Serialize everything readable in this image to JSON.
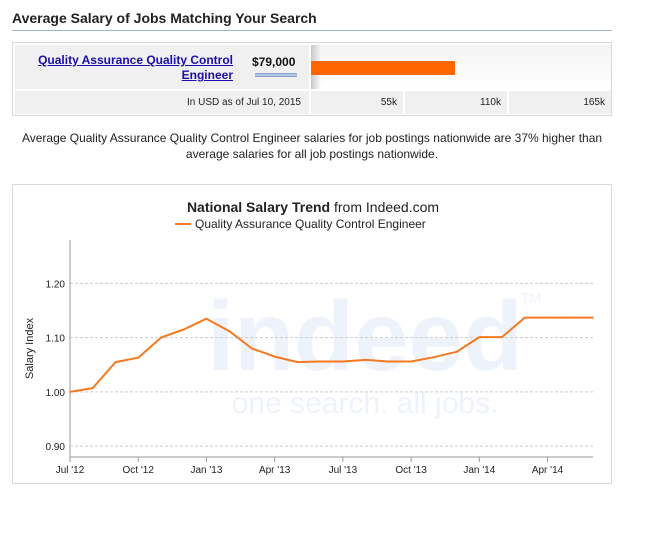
{
  "heading": "Average Salary of Jobs Matching Your Search",
  "salary_box": {
    "job_title": "Quality Assurance Quality Control Engineer",
    "salary": "$79,000",
    "bar_value": 79000,
    "axis_max": 165000,
    "info": "In USD as of Jul 10, 2015",
    "ticks": [
      "55k",
      "110k",
      "165k"
    ]
  },
  "summary": "Average Quality Assurance Quality Control Engineer salaries for job postings nationwide are 37% higher than average salaries for all job postings nationwide.",
  "chart": {
    "title_bold": "National Salary Trend",
    "title_rest": " from Indeed.com",
    "legend": "Quality Assurance Quality Control Engineer",
    "ylabel": "Salary Index",
    "watermark_logo": "indeed",
    "watermark_tm": "TM",
    "watermark_tagline": "one search. all jobs.",
    "line_color": "#f47920"
  },
  "chart_data": {
    "type": "line",
    "title": "National Salary Trend from Indeed.com",
    "xlabel": "",
    "ylabel": "Salary Index",
    "ylim": [
      0.88,
      1.28
    ],
    "grid": true,
    "legend_position": "top-center",
    "x_ticks": [
      "Jul '12",
      "Oct '12",
      "Jan '13",
      "Apr '13",
      "Jul '13",
      "Oct '13",
      "Jan '14",
      "Apr '14"
    ],
    "y_ticks": [
      "0.90",
      "1.00",
      "1.10",
      "1.20"
    ],
    "series": [
      {
        "name": "Quality Assurance Quality Control Engineer",
        "color": "#f47920",
        "x": [
          "2012-07",
          "2012-08",
          "2012-09",
          "2012-10",
          "2012-11",
          "2012-12",
          "2013-01",
          "2013-02",
          "2013-03",
          "2013-04",
          "2013-05",
          "2013-06",
          "2013-07",
          "2013-08",
          "2013-09",
          "2013-10",
          "2013-11",
          "2013-12",
          "2014-01",
          "2014-02",
          "2014-03",
          "2014-04",
          "2014-05",
          "2014-06"
        ],
        "values": [
          1.0,
          1.007,
          1.055,
          1.063,
          1.1,
          1.115,
          1.135,
          1.112,
          1.08,
          1.065,
          1.055,
          1.056,
          1.056,
          1.059,
          1.056,
          1.056,
          1.064,
          1.074,
          1.101,
          1.101,
          1.137,
          1.137,
          1.137,
          1.137
        ]
      }
    ]
  }
}
